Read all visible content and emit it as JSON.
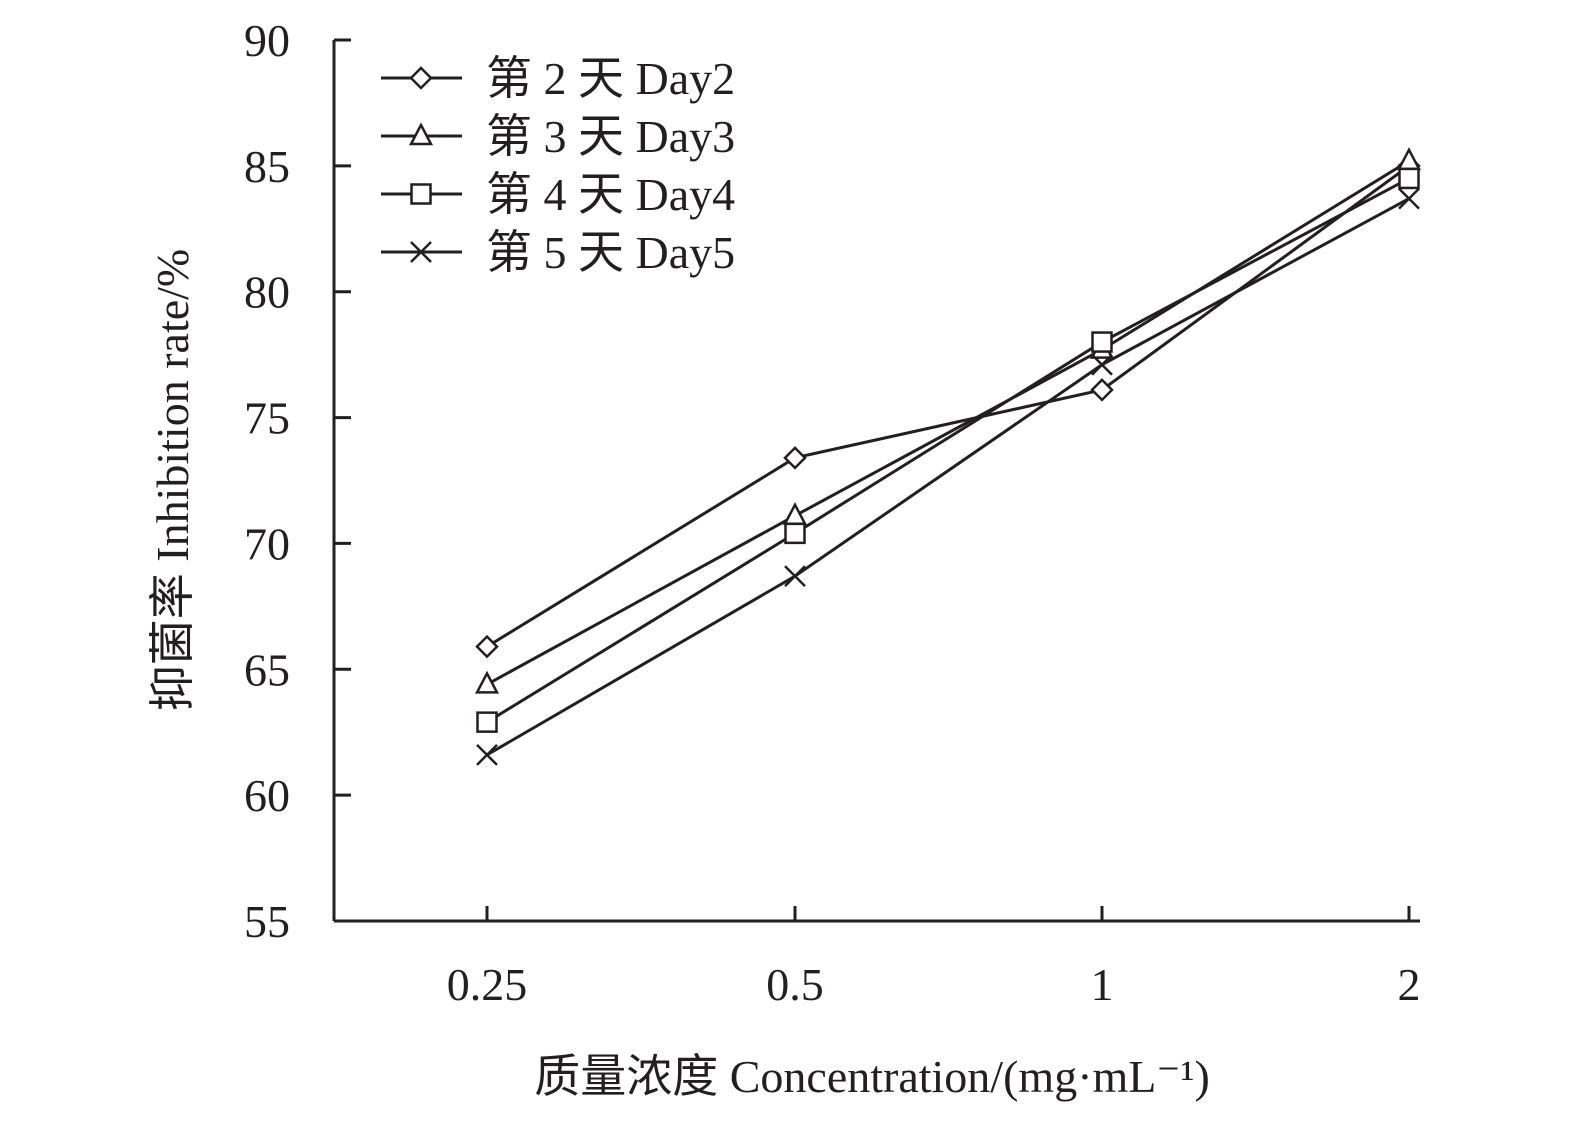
{
  "chart_data": {
    "type": "line",
    "title": "",
    "xlabel": "质量浓度 Concentration/(mg·mL⁻¹)",
    "ylabel": "抑菌率 Inhibition rate/%",
    "categories": [
      "0.25",
      "0.5",
      "1",
      "2"
    ],
    "yticks": [
      "55",
      "60",
      "65",
      "70",
      "75",
      "80",
      "85",
      "90"
    ],
    "ylim": [
      55,
      90
    ],
    "grid": false,
    "legend_position": "top-left",
    "series": [
      {
        "name": "第 2 天 Day2",
        "marker": "diamond",
        "values": [
          65.9,
          73.4,
          76.1,
          85.0
        ]
      },
      {
        "name": "第 3 天 Day3",
        "marker": "triangle",
        "values": [
          64.4,
          71.1,
          77.7,
          85.2
        ]
      },
      {
        "name": "第 4 天 Day4",
        "marker": "square",
        "values": [
          62.9,
          70.4,
          78.0,
          84.5
        ]
      },
      {
        "name": "第 5 天 Day5",
        "marker": "cross",
        "values": [
          61.6,
          68.7,
          77.1,
          83.7
        ]
      }
    ],
    "colors": {
      "line": "#231f20",
      "background": "#ffffff"
    }
  }
}
